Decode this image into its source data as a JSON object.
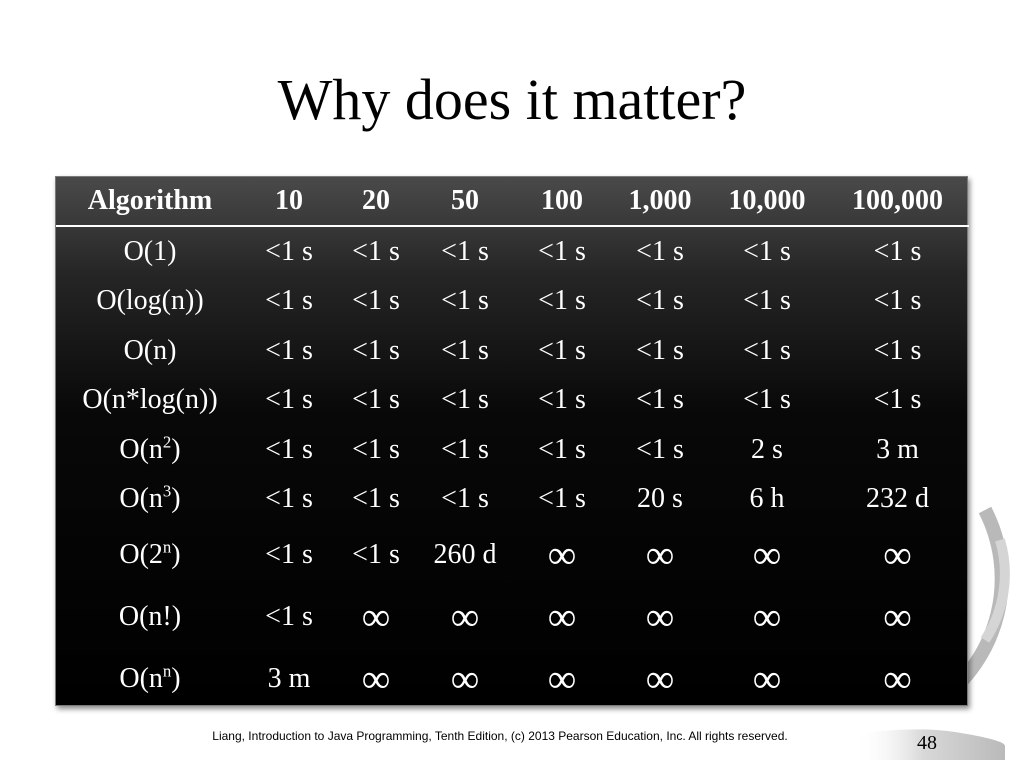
{
  "slide": {
    "title": "Why does it matter?",
    "footer": "Liang, Introduction to Java Programming, Tenth Edition, (c) 2013 Pearson Education, Inc. All rights reserved.",
    "page_number": "48"
  },
  "table": {
    "header": [
      "Algorithm",
      "10",
      "20",
      "50",
      "100",
      "1,000",
      "10,000",
      "100,000"
    ],
    "rows": [
      {
        "algo_base": "O(1)",
        "algo_exp": "",
        "algo_tail": "",
        "cells": [
          "<1 s",
          "<1 s",
          "<1 s",
          "<1 s",
          "<1 s",
          "<1 s",
          "<1 s"
        ]
      },
      {
        "algo_base": "O(log(n))",
        "algo_exp": "",
        "algo_tail": "",
        "cells": [
          "<1 s",
          "<1 s",
          "<1 s",
          "<1 s",
          "<1 s",
          "<1 s",
          "<1 s"
        ]
      },
      {
        "algo_base": "O(n)",
        "algo_exp": "",
        "algo_tail": "",
        "cells": [
          "<1 s",
          "<1 s",
          "<1 s",
          "<1 s",
          "<1 s",
          "<1 s",
          "<1 s"
        ]
      },
      {
        "algo_base": "O(n*log(n))",
        "algo_exp": "",
        "algo_tail": "",
        "cells": [
          "<1 s",
          "<1 s",
          "<1 s",
          "<1 s",
          "<1 s",
          "<1 s",
          "<1 s"
        ]
      },
      {
        "algo_base": "O(n",
        "algo_exp": "2",
        "algo_tail": ")",
        "cells": [
          "<1 s",
          "<1 s",
          "<1 s",
          "<1 s",
          "<1 s",
          "2 s",
          "3 m"
        ]
      },
      {
        "algo_base": "O(n",
        "algo_exp": "3",
        "algo_tail": ")",
        "cells": [
          "<1 s",
          "<1 s",
          "<1 s",
          "<1 s",
          "20 s",
          "6 h",
          "232 d"
        ]
      },
      {
        "algo_base": "O(2",
        "algo_exp": "n",
        "algo_tail": ")",
        "cells": [
          "<1 s",
          "<1 s",
          "260 d",
          "∞",
          "∞",
          "∞",
          "∞"
        ]
      },
      {
        "algo_base": "O(n!)",
        "algo_exp": "",
        "algo_tail": "",
        "cells": [
          "<1 s",
          "∞",
          "∞",
          "∞",
          "∞",
          "∞",
          "∞"
        ]
      },
      {
        "algo_base": "O(n",
        "algo_exp": "n",
        "algo_tail": ")",
        "cells": [
          "3 m",
          "∞",
          "∞",
          "∞",
          "∞",
          "∞",
          "∞"
        ]
      }
    ]
  },
  "colors": {
    "table_text": "#ffffff",
    "deco_arc": "#9a9a9a"
  }
}
